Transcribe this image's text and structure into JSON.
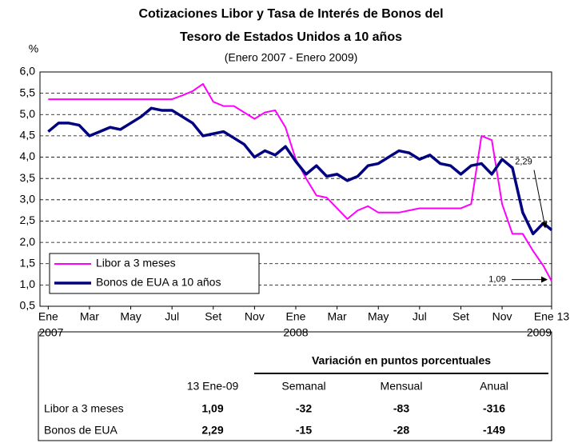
{
  "chart_data": {
    "type": "line",
    "title": "Cotizaciones Libor y Tasa de Interés de Bonos del",
    "title_line2": "Tesoro de Estados Unidos  a 10 años",
    "subtitle": "(Enero 2007 - Enero 2009)",
    "y_label": "%",
    "x": [
      0,
      0.5,
      1,
      1.5,
      2,
      2.5,
      3,
      3.5,
      4,
      4.5,
      5,
      5.5,
      6,
      6.5,
      7,
      7.5,
      8,
      8.5,
      9,
      9.5,
      10,
      10.5,
      11,
      11.5,
      12,
      12.5,
      13,
      13.5,
      14,
      14.5,
      15,
      15.5,
      16,
      16.5,
      17,
      17.5,
      18,
      18.5,
      19,
      19.5,
      20,
      20.5,
      21,
      21.5,
      22,
      22.5,
      23,
      23.5,
      24,
      24.4
    ],
    "series": [
      {
        "name": "Libor a 3 meses",
        "color": "#ff00ff",
        "width": 2,
        "values": [
          5.36,
          5.36,
          5.36,
          5.36,
          5.36,
          5.36,
          5.36,
          5.36,
          5.36,
          5.36,
          5.36,
          5.36,
          5.36,
          5.45,
          5.55,
          5.72,
          5.3,
          5.2,
          5.2,
          5.05,
          4.9,
          5.05,
          5.1,
          4.7,
          3.95,
          3.5,
          3.1,
          3.05,
          2.8,
          2.55,
          2.75,
          2.85,
          2.7,
          2.7,
          2.7,
          2.75,
          2.8,
          2.8,
          2.8,
          2.8,
          2.8,
          2.9,
          4.5,
          4.4,
          2.9,
          2.2,
          2.2,
          1.8,
          1.45,
          1.09
        ]
      },
      {
        "name": "Bonos de EUA a 10 años",
        "color": "#000080",
        "width": 3.5,
        "values": [
          4.6,
          4.8,
          4.8,
          4.75,
          4.5,
          4.6,
          4.7,
          4.65,
          4.8,
          4.95,
          5.15,
          5.1,
          5.1,
          4.95,
          4.8,
          4.5,
          4.55,
          4.6,
          4.45,
          4.3,
          4.0,
          4.15,
          4.05,
          4.25,
          3.9,
          3.6,
          3.8,
          3.55,
          3.6,
          3.45,
          3.55,
          3.8,
          3.85,
          4.0,
          4.15,
          4.1,
          3.95,
          4.05,
          3.85,
          3.8,
          3.6,
          3.8,
          3.85,
          3.6,
          3.95,
          3.75,
          2.7,
          2.2,
          2.45,
          2.29
        ]
      }
    ],
    "xlim": [
      -0.4,
      24.4
    ],
    "xticks": [
      {
        "value": 0,
        "label": "Ene"
      },
      {
        "value": 2,
        "label": "Mar"
      },
      {
        "value": 4,
        "label": "May"
      },
      {
        "value": 6,
        "label": "Jul"
      },
      {
        "value": 8,
        "label": "Set"
      },
      {
        "value": 10,
        "label": "Nov"
      },
      {
        "value": 12,
        "label": "Ene"
      },
      {
        "value": 14,
        "label": "Mar"
      },
      {
        "value": 16,
        "label": "May"
      },
      {
        "value": 18,
        "label": "Jul"
      },
      {
        "value": 20,
        "label": "Set"
      },
      {
        "value": 22,
        "label": "Nov"
      },
      {
        "value": 24.4,
        "label": "Ene 13"
      }
    ],
    "years": [
      {
        "value": 0,
        "label": "2007"
      },
      {
        "value": 12,
        "label": "2008"
      },
      {
        "value": 24.4,
        "label": "2009"
      }
    ],
    "ylim": [
      0.5,
      6.0
    ],
    "yticks": [
      {
        "value": 0.5,
        "label": "0,5"
      },
      {
        "value": 1,
        "label": "1,0"
      },
      {
        "value": 1.5,
        "label": "1,5"
      },
      {
        "value": 2,
        "label": "2,0"
      },
      {
        "value": 2.5,
        "label": "2,5"
      },
      {
        "value": 3,
        "label": "3,0"
      },
      {
        "value": 3.5,
        "label": "3,5"
      },
      {
        "value": 4,
        "label": "4,0"
      },
      {
        "value": 4.5,
        "label": "4,5"
      },
      {
        "value": 5,
        "label": "5,0"
      },
      {
        "value": 5.5,
        "label": "5,5"
      },
      {
        "value": 6,
        "label": "6,0"
      }
    ],
    "grid": true,
    "legend": "lower left",
    "annotations": [
      {
        "value": 2.29,
        "label": "2,29"
      },
      {
        "value": 1.09,
        "label": "1,09"
      }
    ]
  },
  "table": {
    "group_header": "Variación en puntos porcentuales",
    "columns": [
      "13 Ene-09",
      "Semanal",
      "Mensual",
      "Anual"
    ],
    "rows": [
      [
        "Libor a 3 meses",
        "1,09",
        "-32",
        "-83",
        "-316"
      ],
      [
        "Bonos de EUA",
        "2,29",
        "-15",
        "-28",
        "-149"
      ]
    ]
  }
}
